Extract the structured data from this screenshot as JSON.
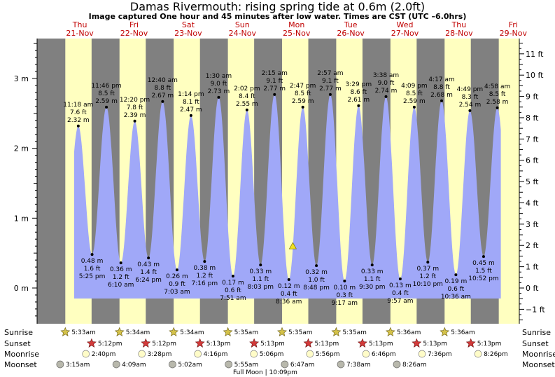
{
  "title": "Damas Rivermouth: rising  spring tide at 0.6m (2.0ft)",
  "subtitle": "Image captured One hour and 45 minutes after low water. Times are CST (UTC –6.0hrs)",
  "chart_data": {
    "type": "area",
    "y_left_unit": "m",
    "y_right_unit": "ft",
    "left_ticks": [
      {
        "v": 0,
        "label": "0 m"
      },
      {
        "v": 1,
        "label": "1 m"
      },
      {
        "v": 2,
        "label": "2 m"
      },
      {
        "v": 3,
        "label": "3 m"
      }
    ],
    "right_ticks": [
      {
        "v": -1,
        "label": "−1 ft"
      },
      {
        "v": 0,
        "label": "0 ft"
      },
      {
        "v": 1,
        "label": "1 ft"
      },
      {
        "v": 2,
        "label": "2 ft"
      },
      {
        "v": 3,
        "label": "3 ft"
      },
      {
        "v": 4,
        "label": "4 ft"
      },
      {
        "v": 5,
        "label": "5 ft"
      },
      {
        "v": 6,
        "label": "6 ft"
      },
      {
        "v": 7,
        "label": "7 ft"
      },
      {
        "v": 8,
        "label": "8 ft"
      },
      {
        "v": 9,
        "label": "9 ft"
      },
      {
        "v": 10,
        "label": "10 ft"
      },
      {
        "v": 11,
        "label": "11 ft"
      }
    ],
    "days": [
      {
        "day": "Thu",
        "date": "21-Nov",
        "sunrise_h": 5.55,
        "sunset_h": 17.2
      },
      {
        "day": "Fri",
        "date": "22-Nov",
        "sunrise_h": 5.567,
        "sunset_h": 17.2
      },
      {
        "day": "Sat",
        "date": "23-Nov",
        "sunrise_h": 5.567,
        "sunset_h": 17.217
      },
      {
        "day": "Sun",
        "date": "24-Nov",
        "sunrise_h": 5.583,
        "sunset_h": 17.217
      },
      {
        "day": "Mon",
        "date": "25-Nov",
        "sunrise_h": 5.583,
        "sunset_h": 17.217
      },
      {
        "day": "Tue",
        "date": "26-Nov",
        "sunrise_h": 5.583,
        "sunset_h": 17.217
      },
      {
        "day": "Wed",
        "date": "27-Nov",
        "sunrise_h": 5.6,
        "sunset_h": 17.217
      },
      {
        "day": "Thu",
        "date": "28-Nov",
        "sunrise_h": 5.6,
        "sunset_h": 17.217
      },
      {
        "day": "Fri",
        "date": "29-Nov",
        "sunrise_h": 5.6,
        "sunset_h": 17.217
      }
    ],
    "tides": [
      {
        "type": "high",
        "day": 0,
        "hour": 11.3,
        "time": "11:18 am",
        "ft": "7.6 ft",
        "m": 2.32,
        "m_label": "2.32 m"
      },
      {
        "type": "low",
        "day": 0,
        "hour": 17.417,
        "time": "5:25 pm",
        "ft": "1.6 ft",
        "m": 0.48,
        "m_label": "0.48 m"
      },
      {
        "type": "high",
        "day": 0,
        "hour": 23.767,
        "time": "11:46 pm",
        "ft": "8.5 ft",
        "m": 2.59,
        "m_label": "2.59 m"
      },
      {
        "type": "low",
        "day": 1,
        "hour": 6.167,
        "time": "6:10 am",
        "ft": "1.2 ft",
        "m": 0.36,
        "m_label": "0.36 m"
      },
      {
        "type": "high",
        "day": 1,
        "hour": 12.333,
        "time": "12:20 pm",
        "ft": "7.8 ft",
        "m": 2.39,
        "m_label": "2.39 m"
      },
      {
        "type": "low",
        "day": 1,
        "hour": 18.4,
        "time": "6:24 pm",
        "ft": "1.4 ft",
        "m": 0.43,
        "m_label": "0.43 m"
      },
      {
        "type": "high",
        "day": 2,
        "hour": 0.667,
        "time": "12:40 am",
        "ft": "8.8 ft",
        "m": 2.67,
        "m_label": "2.67 m"
      },
      {
        "type": "low",
        "day": 2,
        "hour": 7.05,
        "time": "7:03 am",
        "ft": "0.9 ft",
        "m": 0.26,
        "m_label": "0.26 m"
      },
      {
        "type": "high",
        "day": 2,
        "hour": 13.233,
        "time": "1:14 pm",
        "ft": "8.1 ft",
        "m": 2.47,
        "m_label": "2.47 m"
      },
      {
        "type": "low",
        "day": 2,
        "hour": 19.267,
        "time": "7:16 pm",
        "ft": "1.2 ft",
        "m": 0.38,
        "m_label": "0.38 m"
      },
      {
        "type": "high",
        "day": 3,
        "hour": 1.5,
        "time": "1:30 am",
        "ft": "9.0 ft",
        "m": 2.73,
        "m_label": "2.73 m"
      },
      {
        "type": "low",
        "day": 3,
        "hour": 7.85,
        "time": "7:51 am",
        "ft": "0.6 ft",
        "m": 0.17,
        "m_label": "0.17 m"
      },
      {
        "type": "high",
        "day": 3,
        "hour": 14.033,
        "time": "2:02 pm",
        "ft": "8.4 ft",
        "m": 2.55,
        "m_label": "2.55 m"
      },
      {
        "type": "low",
        "day": 3,
        "hour": 20.05,
        "time": "8:03 pm",
        "ft": "1.1 ft",
        "m": 0.33,
        "m_label": "0.33 m"
      },
      {
        "type": "high",
        "day": 4,
        "hour": 2.25,
        "time": "2:15 am",
        "ft": "9.1 ft",
        "m": 2.77,
        "m_label": "2.77 m"
      },
      {
        "type": "low",
        "day": 4,
        "hour": 8.6,
        "time": "8:36 am",
        "ft": "0.4 ft",
        "m": 0.12,
        "m_label": "0.12 m"
      },
      {
        "type": "high",
        "day": 4,
        "hour": 14.783,
        "time": "2:47 pm",
        "ft": "8.5 ft",
        "m": 2.59,
        "m_label": "2.59 m"
      },
      {
        "type": "low",
        "day": 4,
        "hour": 20.8,
        "time": "8:48 pm",
        "ft": "1.0 ft",
        "m": 0.32,
        "m_label": "0.32 m"
      },
      {
        "type": "high",
        "day": 5,
        "hour": 2.95,
        "time": "2:57 am",
        "ft": "9.1 ft",
        "m": 2.77,
        "m_label": "2.77 m"
      },
      {
        "type": "low",
        "day": 5,
        "hour": 9.283,
        "time": "9:17 am",
        "ft": "0.3 ft",
        "m": 0.1,
        "m_label": "0.10 m"
      },
      {
        "type": "high",
        "day": 5,
        "hour": 15.483,
        "time": "3:29 pm",
        "ft": "8.6 ft",
        "m": 2.61,
        "m_label": "2.61 m"
      },
      {
        "type": "low",
        "day": 5,
        "hour": 21.5,
        "time": "9:30 pm",
        "ft": "1.1 ft",
        "m": 0.33,
        "m_label": "0.33 m"
      },
      {
        "type": "high",
        "day": 6,
        "hour": 3.633,
        "time": "3:38 am",
        "ft": "9.0 ft",
        "m": 2.74,
        "m_label": "2.74 m"
      },
      {
        "type": "low",
        "day": 6,
        "hour": 9.95,
        "time": "9:57 am",
        "ft": "0.4 ft",
        "m": 0.13,
        "m_label": "0.13 m"
      },
      {
        "type": "high",
        "day": 6,
        "hour": 16.15,
        "time": "4:09 pm",
        "ft": "8.5 ft",
        "m": 2.59,
        "m_label": "2.59 m"
      },
      {
        "type": "low",
        "day": 6,
        "hour": 22.167,
        "time": "10:10 pm",
        "ft": "1.2 ft",
        "m": 0.37,
        "m_label": "0.37 m"
      },
      {
        "type": "high",
        "day": 7,
        "hour": 4.283,
        "time": "4:17 am",
        "ft": "8.8 ft",
        "m": 2.68,
        "m_label": "2.68 m"
      },
      {
        "type": "low",
        "day": 7,
        "hour": 10.6,
        "time": "10:36 am",
        "ft": "0.6 ft",
        "m": 0.19,
        "m_label": "0.19 m"
      },
      {
        "type": "high",
        "day": 7,
        "hour": 16.817,
        "time": "4:49 pm",
        "ft": "8.3 ft",
        "m": 2.54,
        "m_label": "2.54 m"
      },
      {
        "type": "low",
        "day": 7,
        "hour": 22.867,
        "time": "10:52 pm",
        "ft": "1.5 ft",
        "m": 0.45,
        "m_label": "0.45 m"
      },
      {
        "type": "high",
        "day": 8,
        "hour": 4.967,
        "time": "4:58 am",
        "ft": "8.5 ft",
        "m": 2.58,
        "m_label": "2.58 m"
      }
    ],
    "current": {
      "day": 4,
      "hour": 10.35,
      "m": 0.6
    },
    "curve_start": {
      "day": 0,
      "hour": 9.5
    },
    "curve_end": {
      "day": 8,
      "hour": 6.5
    }
  },
  "bottom_rows": {
    "labels": {
      "sunrise": "Sunrise",
      "sunset": "Sunset",
      "moonrise": "Moonrise",
      "moonset": "Moonset"
    },
    "sunrise": [
      {
        "day": 0,
        "hour": 5.55,
        "text": "5:33am"
      },
      {
        "day": 1,
        "hour": 5.567,
        "text": "5:34am"
      },
      {
        "day": 2,
        "hour": 5.567,
        "text": "5:34am"
      },
      {
        "day": 3,
        "hour": 5.583,
        "text": "5:35am"
      },
      {
        "day": 4,
        "hour": 5.583,
        "text": "5:35am"
      },
      {
        "day": 5,
        "hour": 5.583,
        "text": "5:35am"
      },
      {
        "day": 6,
        "hour": 5.6,
        "text": "5:36am"
      },
      {
        "day": 7,
        "hour": 5.6,
        "text": "5:36am"
      }
    ],
    "sunset": [
      {
        "day": 0,
        "hour": 17.2,
        "text": "5:12pm"
      },
      {
        "day": 1,
        "hour": 17.2,
        "text": "5:12pm"
      },
      {
        "day": 2,
        "hour": 17.217,
        "text": "5:13pm"
      },
      {
        "day": 3,
        "hour": 17.217,
        "text": "5:13pm"
      },
      {
        "day": 4,
        "hour": 17.217,
        "text": "5:13pm"
      },
      {
        "day": 5,
        "hour": 17.217,
        "text": "5:13pm"
      },
      {
        "day": 6,
        "hour": 17.217,
        "text": "5:13pm"
      },
      {
        "day": 7,
        "hour": 17.217,
        "text": "5:13pm"
      }
    ],
    "moonrise": [
      {
        "day": 0,
        "hour": 14.667,
        "text": "2:40pm"
      },
      {
        "day": 1,
        "hour": 15.467,
        "text": "3:28pm"
      },
      {
        "day": 2,
        "hour": 16.267,
        "text": "4:16pm"
      },
      {
        "day": 3,
        "hour": 17.1,
        "text": "5:06pm"
      },
      {
        "day": 4,
        "hour": 17.933,
        "text": "5:56pm"
      },
      {
        "day": 5,
        "hour": 18.767,
        "text": "6:46pm"
      },
      {
        "day": 6,
        "hour": 19.6,
        "text": "7:36pm"
      },
      {
        "day": 7,
        "hour": 20.433,
        "text": "8:26pm"
      }
    ],
    "moonset": [
      {
        "day": 0,
        "hour": 3.25,
        "text": "3:15am"
      },
      {
        "day": 1,
        "hour": 4.15,
        "text": "4:09am"
      },
      {
        "day": 2,
        "hour": 5.033,
        "text": "5:02am"
      },
      {
        "day": 3,
        "hour": 5.917,
        "text": "5:55am"
      },
      {
        "day": 4,
        "hour": 6.783,
        "text": "6:47am"
      },
      {
        "day": 5,
        "hour": 7.633,
        "text": "7:38am"
      },
      {
        "day": 6,
        "hour": 8.433,
        "text": "8:26am"
      }
    ],
    "moon_phase": {
      "day": 4,
      "hour": 0,
      "text": "Full Moon | 10:09pm"
    }
  },
  "colors": {
    "night": "#808080",
    "day": "#ffffc0",
    "water": "#a0a8f8",
    "day_label": "#c00000",
    "sunrise_star": "#d4c24a",
    "sunset_star": "#d23a3a",
    "moonrise": "#fffcc8",
    "moonset": "#b8b8ac",
    "marker": "#f0e020"
  }
}
